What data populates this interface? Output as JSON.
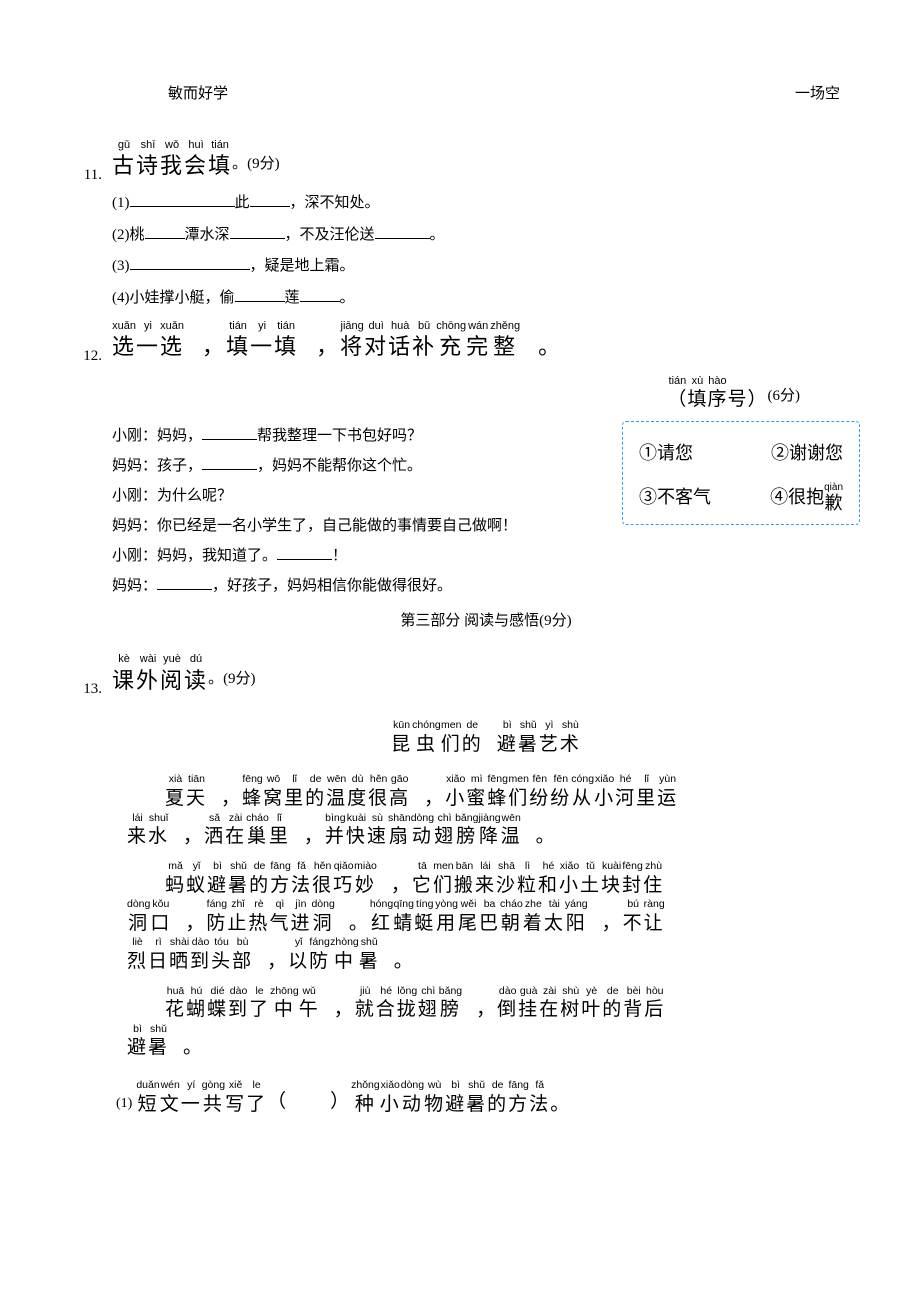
{
  "top": {
    "left": "敏而好学",
    "right": "一场空"
  },
  "q11": {
    "num": "11.",
    "title": {
      "pinyin": [
        "gǔ",
        "shī",
        "wǒ",
        "huì",
        "tián"
      ],
      "hanzi": [
        "古",
        "诗",
        "我",
        "会",
        "填"
      ]
    },
    "tail": "。(9分)",
    "items": [
      {
        "pre": "(1)",
        "segs": [
          "",
          "此",
          "，",
          "深不知处。"
        ],
        "blanks": [
          50,
          55,
          40
        ]
      },
      {
        "pre": "(2)桃",
        "segs": [
          "潭水深",
          "，不及汪伦送",
          "。"
        ],
        "blanks": [
          40,
          55,
          55
        ]
      },
      {
        "pre": "(3)",
        "segs": [
          "，疑是地上霜。"
        ],
        "blanks": [
          120
        ]
      },
      {
        "pre": "(4)小娃撑小艇，偷",
        "segs": [
          "莲",
          "。"
        ],
        "blanks": [
          50,
          40
        ]
      }
    ]
  },
  "q12": {
    "num": "12.",
    "title_groups": [
      {
        "pinyin": [
          "xuǎn",
          "yi",
          "xuǎn"
        ],
        "hanzi": [
          "选",
          "一",
          "选"
        ]
      },
      {
        "punct": "，"
      },
      {
        "pinyin": [
          "tián",
          "yi",
          "tián"
        ],
        "hanzi": [
          "填",
          "一",
          "填"
        ]
      },
      {
        "punct": "，"
      },
      {
        "pinyin": [
          "jiāng",
          "duì",
          "huà",
          "bǔ",
          "chōng",
          "wán",
          "zhěng"
        ],
        "hanzi": [
          "将",
          "对",
          "话",
          "补",
          "充",
          "完",
          "整"
        ]
      },
      {
        "punct": "。"
      }
    ],
    "sub_title": {
      "pinyin": [
        "tián",
        "xù",
        "hào"
      ],
      "hanzi": "（填 序 号 ）",
      "tail": "(6分)"
    },
    "dialog": [
      "小刚：妈妈，________帮我整理一下书包好吗？",
      "妈妈：孩子，________，妈妈不能帮你这个忙。",
      "小刚：为什么呢？",
      "妈妈：你已经是一名小学生了，自己能做的事情要自己做啊！",
      "小刚：妈妈，我知道了。________！",
      "妈妈：________，好孩子，妈妈相信你能做得很好。"
    ],
    "options": {
      "o1": "①请您",
      "o2": "②谢谢您",
      "o3": "③不客气",
      "o4_pre": "④很抱",
      "o4_rt": "qiàn",
      "o4_rb": "歉"
    },
    "part3": "第三部分 阅读与感悟(9分)"
  },
  "q13": {
    "num": "13.",
    "title": {
      "pinyin": [
        "kè",
        "wài",
        "yuè",
        "dú"
      ],
      "hanzi": [
        "课",
        "外",
        "阅",
        "读"
      ]
    },
    "tail": "。(9分)",
    "passage_title": {
      "groups": [
        {
          "pinyin": [
            "kūn",
            "chóng",
            "men",
            "de"
          ],
          "hanzi": [
            "昆",
            "虫",
            "们",
            "的"
          ]
        },
        {
          "pinyin": [
            "bì",
            "shǔ",
            "yì",
            "shù"
          ],
          "hanzi": [
            "避",
            "暑",
            "艺",
            "术"
          ]
        }
      ]
    },
    "paras": [
      [
        {
          "indent": true
        },
        {
          "pinyin": [
            "xià",
            "tiān"
          ],
          "hanzi": [
            "夏",
            "天"
          ]
        },
        {
          "punct": "，"
        },
        {
          "pinyin": [
            "fēng",
            "wō",
            "lǐ",
            "de",
            "wēn",
            "dù",
            "hěn",
            "gāo"
          ],
          "hanzi": [
            "蜂",
            "窝",
            "里",
            "的",
            "温",
            "度",
            "很",
            "高"
          ]
        },
        {
          "punct": "，"
        },
        {
          "pinyin": [
            "xiǎo",
            "mì",
            "fēng",
            "men",
            "fēn",
            "fēn",
            "cóng",
            "xiǎo",
            "hé",
            "lǐ",
            "yùn"
          ],
          "hanzi": [
            "小",
            "蜜",
            "蜂",
            "们",
            "纷",
            "纷",
            "从",
            "小",
            "河",
            "里",
            "运"
          ]
        },
        {
          "br": true
        },
        {
          "pinyin": [
            "lái",
            "shuǐ"
          ],
          "hanzi": [
            "来",
            "水"
          ]
        },
        {
          "punct": "，"
        },
        {
          "pinyin": [
            "sǎ",
            "zài",
            "cháo",
            "lǐ"
          ],
          "hanzi": [
            "洒",
            "在",
            "巢",
            "里"
          ]
        },
        {
          "punct": "，"
        },
        {
          "pinyin": [
            "bìng",
            "kuài",
            "sù",
            "shān",
            "dòng",
            "chì",
            "bǎng",
            "jiàng",
            "wēn"
          ],
          "hanzi": [
            "并",
            "快",
            "速",
            "扇",
            "动",
            "翅",
            "膀",
            "降",
            "温"
          ]
        },
        {
          "punct": "。"
        }
      ],
      [
        {
          "indent": true
        },
        {
          "pinyin": [
            "mǎ",
            "yǐ",
            "bì",
            "shǔ",
            "de",
            "fāng",
            "fǎ",
            "hěn",
            "qiǎo",
            "miào"
          ],
          "hanzi": [
            "蚂",
            "蚁",
            "避",
            "暑",
            "的",
            "方",
            "法",
            "很",
            "巧",
            "妙"
          ]
        },
        {
          "punct": "，"
        },
        {
          "pinyin": [
            "tā",
            "men",
            "bān",
            "lái",
            "shā",
            "lì",
            "hé",
            "xiǎo",
            "tǔ",
            "kuài",
            "fēng",
            "zhù"
          ],
          "hanzi": [
            "它",
            "们",
            "搬",
            "来",
            "沙",
            "粒",
            "和",
            "小",
            "土",
            "块",
            "封",
            "住"
          ]
        },
        {
          "br": true
        },
        {
          "pinyin": [
            "dòng",
            "kǒu"
          ],
          "hanzi": [
            "洞",
            "口"
          ]
        },
        {
          "punct": "，"
        },
        {
          "pinyin": [
            "fáng",
            "zhǐ",
            "rè",
            "qì",
            "jìn",
            "dòng"
          ],
          "hanzi": [
            "防",
            "止",
            "热",
            "气",
            "进",
            "洞"
          ]
        },
        {
          "punct": "。"
        },
        {
          "pinyin": [
            "hóng",
            "qīng",
            "tíng",
            "yòng",
            "wěi",
            "ba",
            "cháo",
            "zhe",
            "tài",
            "yáng"
          ],
          "hanzi": [
            "红",
            "蜻",
            "蜓",
            "用",
            "尾",
            "巴",
            "朝",
            "着",
            "太",
            "阳"
          ]
        },
        {
          "punct": "，"
        },
        {
          "pinyin": [
            "bú",
            "ràng"
          ],
          "hanzi": [
            "不",
            "让"
          ]
        },
        {
          "br": true
        },
        {
          "pinyin": [
            "liè",
            "rì",
            "shài",
            "dào",
            "tóu",
            "bù"
          ],
          "hanzi": [
            "烈",
            "日",
            "晒",
            "到",
            "头",
            "部"
          ]
        },
        {
          "punct": "，"
        },
        {
          "pinyin": [
            "yǐ",
            "fáng",
            "zhòng",
            "shǔ"
          ],
          "hanzi": [
            "以",
            "防",
            "中",
            "暑"
          ]
        },
        {
          "punct": "。"
        }
      ],
      [
        {
          "indent": true
        },
        {
          "pinyin": [
            "huā",
            "hú",
            "dié",
            "dào",
            "le",
            "zhōng",
            "wǔ"
          ],
          "hanzi": [
            "花",
            "蝴",
            "蝶",
            "到",
            "了",
            "中",
            "午"
          ]
        },
        {
          "punct": "，"
        },
        {
          "pinyin": [
            "jiù",
            "hé",
            "lǒng",
            "chì",
            "bǎng"
          ],
          "hanzi": [
            "就",
            "合",
            "拢",
            "翅",
            "膀"
          ]
        },
        {
          "punct": "，"
        },
        {
          "pinyin": [
            "dào",
            "guà",
            "zài",
            "shù",
            "yè",
            "de",
            "bèi",
            "hòu"
          ],
          "hanzi": [
            "倒",
            "挂",
            "在",
            "树",
            "叶",
            "的",
            "背",
            "后"
          ]
        },
        {
          "br": true
        },
        {
          "pinyin": [
            "bì",
            "shǔ"
          ],
          "hanzi": [
            "避",
            "暑"
          ]
        },
        {
          "punct": "。"
        }
      ]
    ],
    "subq1": {
      "num": "(1)",
      "g1": {
        "pinyin": [
          "duǎn",
          "wén",
          "yí",
          "gòng",
          "xiě",
          "le"
        ],
        "hanzi": [
          "短",
          "文",
          "一",
          "共",
          "写",
          "了"
        ]
      },
      "paren": "（　　）",
      "g2": {
        "pinyin": [
          "zhǒng",
          "xiǎo",
          "dòng",
          "wù",
          "bì",
          "shǔ",
          "de",
          "fāng",
          "fǎ"
        ],
        "hanzi": [
          "种",
          "小",
          "动",
          "物",
          "避",
          "暑",
          "的",
          "方",
          "法"
        ]
      },
      "end": "。"
    }
  }
}
